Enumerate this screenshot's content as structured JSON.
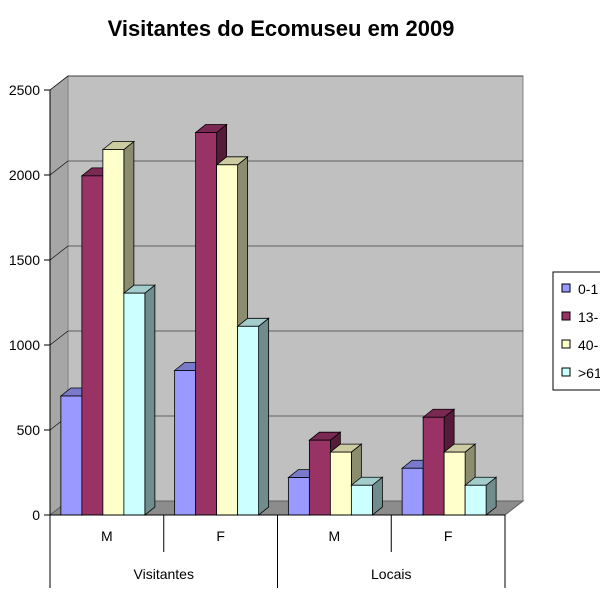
{
  "chart_data": {
    "type": "bar",
    "title": "Visitantes do Ecomuseu em 2009",
    "groups": [
      {
        "label": "Visitantes",
        "categories": [
          "M",
          "F"
        ]
      },
      {
        "label": "Locais",
        "categories": [
          "M",
          "F"
        ]
      }
    ],
    "categories": [
      "M",
      "F",
      "M",
      "F"
    ],
    "series": [
      {
        "name": "0-1",
        "color": "#9999ff",
        "values": [
          700,
          850,
          220,
          275
        ]
      },
      {
        "name": "13-",
        "color": "#993366",
        "values": [
          1995,
          2250,
          440,
          575
        ]
      },
      {
        "name": "40-",
        "color": "#ffffcc",
        "values": [
          2150,
          2060,
          370,
          370
        ]
      },
      {
        "name": ">61",
        "color": "#ccffff",
        "values": [
          1305,
          1110,
          175,
          175
        ]
      }
    ],
    "yticks": [
      0,
      500,
      1000,
      1500,
      2000,
      2500
    ],
    "ylim": [
      0,
      2500
    ],
    "grid": true,
    "legend_position": "right",
    "plot_background": "#c0c0c0"
  }
}
